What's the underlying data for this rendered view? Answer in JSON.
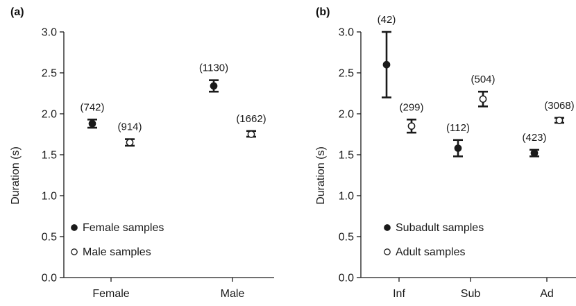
{
  "colors": {
    "ink": "#1a1a1a",
    "filled_marker": "#1a1a1a",
    "open_marker": "#ffffff"
  },
  "chart_data": [
    {
      "panel": "(a)",
      "type": "scatter",
      "ylabel": "Duration (s)",
      "ylim": [
        0,
        3.0
      ],
      "yticks": [
        "0.0",
        "0.5",
        "1.0",
        "1.5",
        "2.0",
        "2.5",
        "3.0"
      ],
      "categories": [
        "Female",
        "Male"
      ],
      "legend": [
        {
          "symbol": "●",
          "label": "Female samples"
        },
        {
          "symbol": "○",
          "label": "Male samples"
        }
      ],
      "series": [
        {
          "name": "Female samples",
          "marker": "filled",
          "points": [
            {
              "category": "Female",
              "y": 1.88,
              "lo": 1.83,
              "hi": 1.93,
              "n": "(742)"
            },
            {
              "category": "Male",
              "y": 2.34,
              "lo": 2.27,
              "hi": 2.41,
              "n": "(1130)"
            }
          ]
        },
        {
          "name": "Male samples",
          "marker": "open",
          "points": [
            {
              "category": "Female",
              "y": 1.65,
              "lo": 1.61,
              "hi": 1.69,
              "n": "(914)"
            },
            {
              "category": "Male",
              "y": 1.75,
              "lo": 1.72,
              "hi": 1.79,
              "n": "(1662)"
            }
          ]
        }
      ]
    },
    {
      "panel": "(b)",
      "type": "scatter",
      "ylabel": "Duration (s)",
      "ylim": [
        0,
        3.0
      ],
      "yticks": [
        "0.0",
        "0.5",
        "1.0",
        "1.5",
        "2.0",
        "2.5",
        "3.0"
      ],
      "categories": [
        "Inf",
        "Sub",
        "Ad"
      ],
      "legend": [
        {
          "symbol": "●",
          "label": "Subadult samples"
        },
        {
          "symbol": "○",
          "label": "Adult samples"
        }
      ],
      "series": [
        {
          "name": "Subadult samples",
          "marker": "filled",
          "points": [
            {
              "category": "Inf",
              "y": 2.6,
              "lo": 2.2,
              "hi": 3.0,
              "n": "(42)"
            },
            {
              "category": "Sub",
              "y": 1.58,
              "lo": 1.48,
              "hi": 1.68,
              "n": "(112)"
            },
            {
              "category": "Ad",
              "y": 1.52,
              "lo": 1.48,
              "hi": 1.56,
              "n": "(423)"
            }
          ]
        },
        {
          "name": "Adult samples",
          "marker": "open",
          "points": [
            {
              "category": "Inf",
              "y": 1.85,
              "lo": 1.77,
              "hi": 1.93,
              "n": "(299)"
            },
            {
              "category": "Sub",
              "y": 2.18,
              "lo": 2.09,
              "hi": 2.27,
              "n": "(504)"
            },
            {
              "category": "Ad",
              "y": 1.92,
              "lo": 1.89,
              "hi": 1.95,
              "n": "(3068)"
            }
          ]
        }
      ]
    }
  ]
}
